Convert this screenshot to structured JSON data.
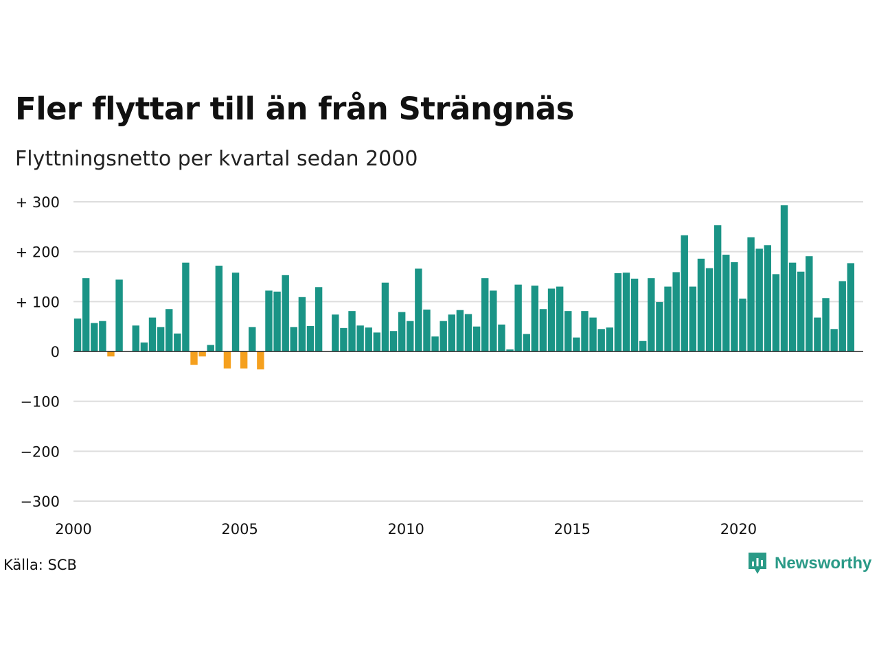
{
  "title": "Fler flyttar till än från Strängnäs",
  "subtitle": "Flyttningsnetto per kvartal sedan 2000",
  "source": "Källa: SCB",
  "brand": "Newsworthy",
  "colors": {
    "positive": "#1a9486",
    "negative": "#f5a01e",
    "grid": "#dddddd",
    "brand": "#2a9a87"
  },
  "chart_data": {
    "type": "bar",
    "title": "Fler flyttar till än från Strängnäs",
    "subtitle": "Flyttningsnetto per kvartal sedan 2000",
    "x_start": 2000,
    "x_step": 0.25,
    "xlim": [
      2000,
      2023.75
    ],
    "ylim": [
      -300,
      300
    ],
    "grid": true,
    "x_ticks": [
      2000,
      2005,
      2010,
      2015,
      2020
    ],
    "x_tick_labels": [
      "2000",
      "2005",
      "2010",
      "2015",
      "2020"
    ],
    "y_ticks": [
      300,
      200,
      100,
      0,
      -100,
      -200,
      -300
    ],
    "y_tick_labels": [
      "+ 300",
      "+ 200",
      "+ 100",
      "0",
      "−100",
      "−200",
      "−300"
    ],
    "values": [
      66,
      147,
      57,
      61,
      -10,
      144,
      0,
      52,
      18,
      68,
      49,
      85,
      36,
      178,
      -27,
      -10,
      13,
      172,
      -34,
      158,
      -34,
      49,
      -36,
      122,
      120,
      153,
      49,
      109,
      51,
      129,
      0,
      74,
      47,
      81,
      52,
      48,
      38,
      138,
      41,
      79,
      61,
      166,
      84,
      30,
      61,
      74,
      83,
      75,
      50,
      147,
      122,
      54,
      4,
      134,
      35,
      132,
      85,
      126,
      130,
      81,
      28,
      81,
      68,
      45,
      48,
      157,
      158,
      146,
      21,
      147,
      99,
      130,
      159,
      233,
      130,
      186,
      167,
      253,
      194,
      179,
      106,
      229,
      206,
      213,
      155,
      293,
      178,
      160,
      191,
      68,
      107,
      45,
      141,
      177
    ]
  }
}
